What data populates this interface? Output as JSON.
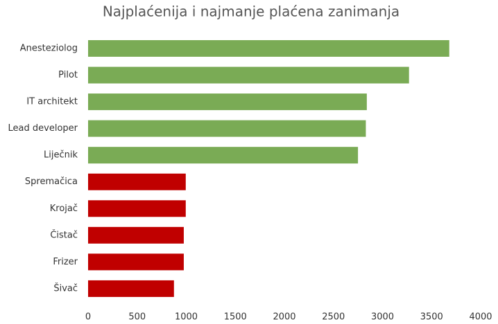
{
  "chart_data": {
    "type": "barh",
    "title": "Najplaćenija i najmanje plaćena zanimanja",
    "categories": [
      "Anesteziolog",
      "Pilot",
      "IT architekt",
      "Lead developer",
      "Liječnik",
      "Spremačica",
      "Krojač",
      "Čistač",
      "Frizer",
      "Šivač"
    ],
    "values": [
      3680,
      3270,
      2840,
      2830,
      2750,
      995,
      995,
      975,
      975,
      875
    ],
    "colors": [
      "#7aab55",
      "#7aab55",
      "#7aab55",
      "#7aab55",
      "#7aab55",
      "#c00000",
      "#c00000",
      "#c00000",
      "#c00000",
      "#c00000"
    ],
    "xlim": [
      0,
      4000
    ],
    "xticks": [
      0,
      500,
      1000,
      1500,
      2000,
      2500,
      3000,
      3500,
      4000
    ],
    "grid": false
  }
}
